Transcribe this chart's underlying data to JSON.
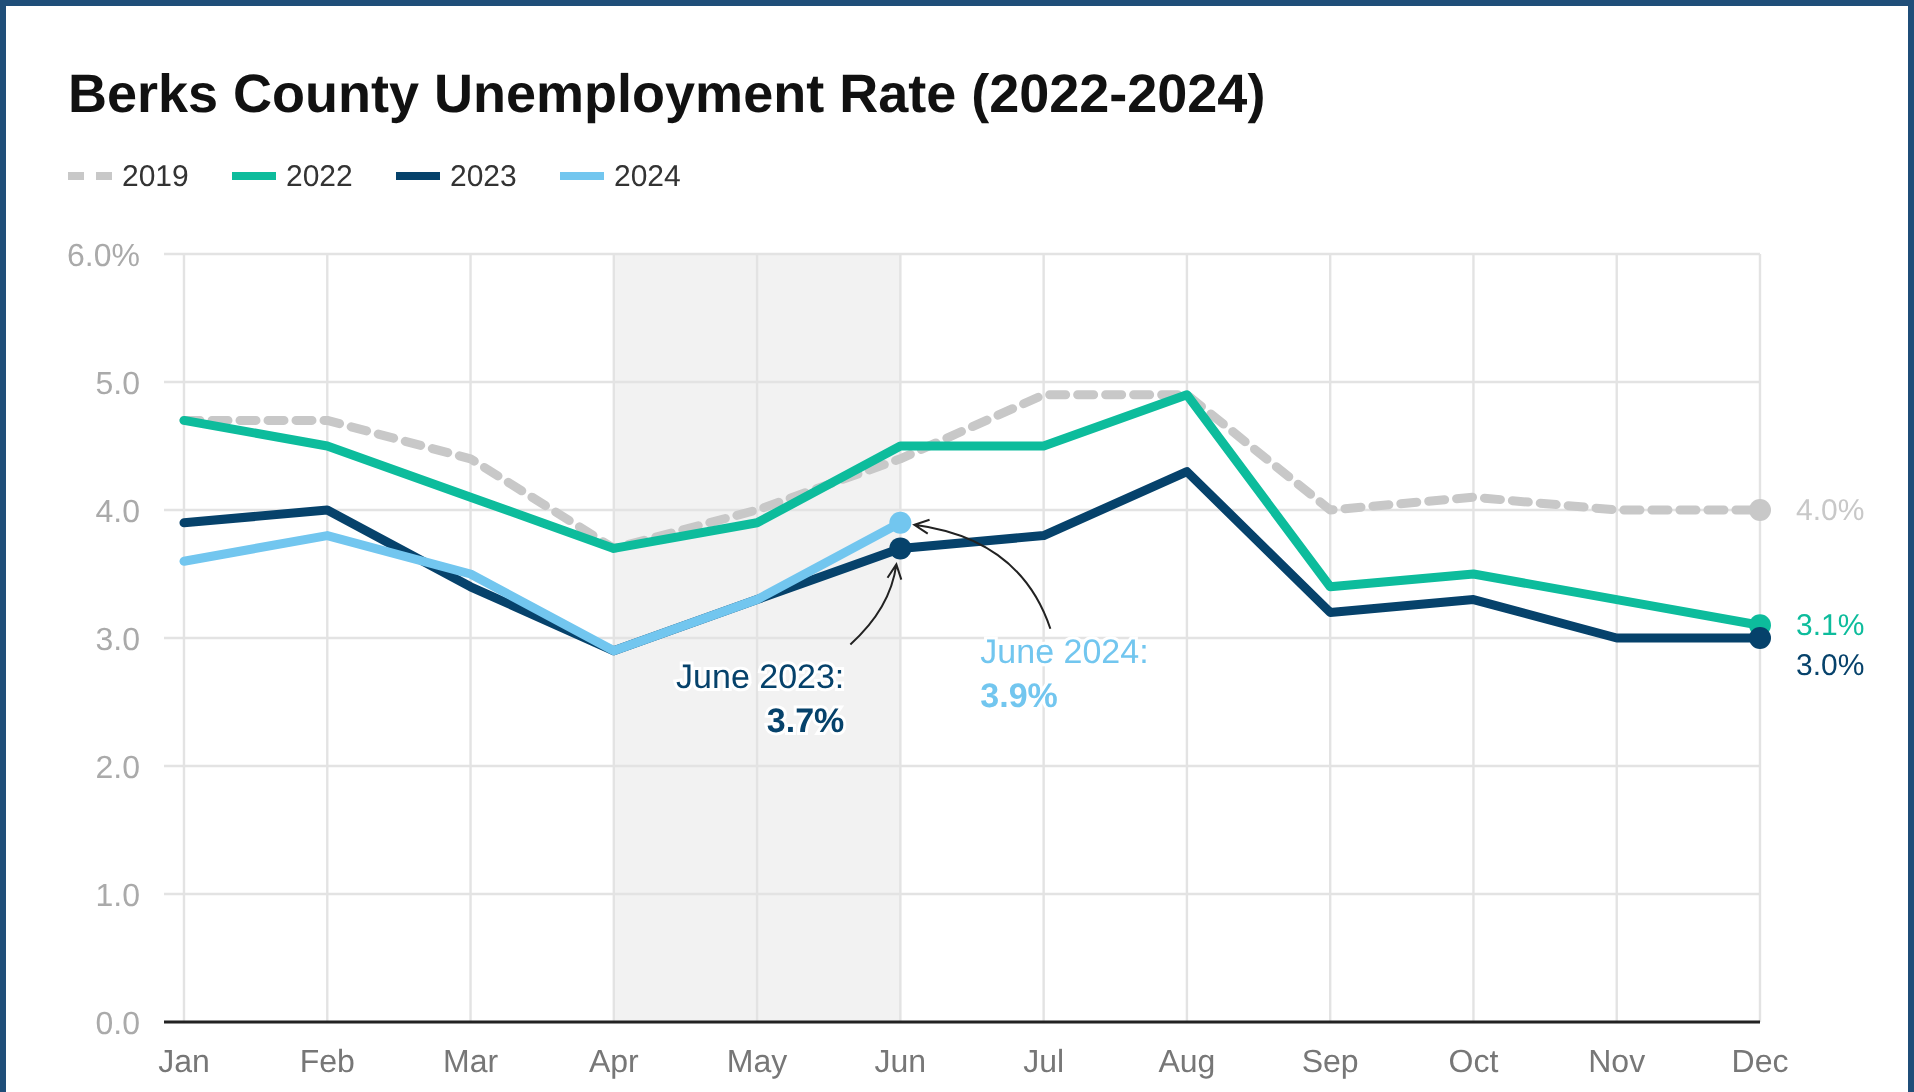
{
  "chart_data": {
    "type": "line",
    "title": "Berks County Unemployment Rate (2022-2024)",
    "categories": [
      "Jan",
      "Feb",
      "Mar",
      "Apr",
      "May",
      "Jun",
      "Jul",
      "Aug",
      "Sep",
      "Oct",
      "Nov",
      "Dec"
    ],
    "series": [
      {
        "name": "2019",
        "color": "#c8c8c8",
        "line_style": "dashed",
        "values": [
          4.7,
          4.7,
          4.4,
          3.7,
          4.0,
          4.4,
          4.9,
          4.9,
          4.0,
          4.1,
          4.0,
          4.0
        ],
        "value_labels": [
          null,
          null,
          null,
          null,
          null,
          null,
          null,
          null,
          null,
          null,
          null,
          "4.0%"
        ]
      },
      {
        "name": "2022",
        "color": "#0dbc9c",
        "values": [
          4.7,
          4.5,
          4.1,
          3.7,
          3.9,
          4.5,
          4.5,
          4.9,
          3.4,
          3.5,
          3.3,
          3.1
        ],
        "value_labels": [
          null,
          null,
          null,
          null,
          null,
          null,
          null,
          null,
          null,
          null,
          null,
          "3.1%"
        ]
      },
      {
        "name": "2023",
        "color": "#06426b",
        "values": [
          3.9,
          4.0,
          3.4,
          2.9,
          3.3,
          3.7,
          3.8,
          4.3,
          3.2,
          3.3,
          3.0,
          3.0
        ],
        "value_labels": [
          null,
          null,
          null,
          null,
          null,
          null,
          null,
          null,
          null,
          null,
          null,
          "3.0%"
        ]
      },
      {
        "name": "2024",
        "color": "#72c6ef",
        "values": [
          3.6,
          3.8,
          3.5,
          2.9,
          3.3,
          3.9,
          null,
          null,
          null,
          null,
          null,
          null
        ]
      }
    ],
    "ylim": [
      0,
      6
    ],
    "yticks": [
      {
        "value": 0,
        "label": "0.0"
      },
      {
        "value": 1,
        "label": "1.0"
      },
      {
        "value": 2,
        "label": "2.0"
      },
      {
        "value": 3,
        "label": "3.0"
      },
      {
        "value": 4,
        "label": "4.0"
      },
      {
        "value": 5,
        "label": "5.0"
      },
      {
        "value": 6,
        "label": "6.0%"
      }
    ],
    "bands": [
      {
        "axis": "x",
        "from": "Apr",
        "to": "Jun",
        "color": "#f2f2f2"
      }
    ],
    "annotations": [
      {
        "text": "June 2023:\n3.7%",
        "x": "Jun",
        "y": 3.7
      },
      {
        "text": "June 2024:\n3.9%",
        "x": "Jun",
        "y": 3.9
      }
    ],
    "grid": true,
    "legend": "top left",
    "marker": "none",
    "line_style": "solid"
  }
}
